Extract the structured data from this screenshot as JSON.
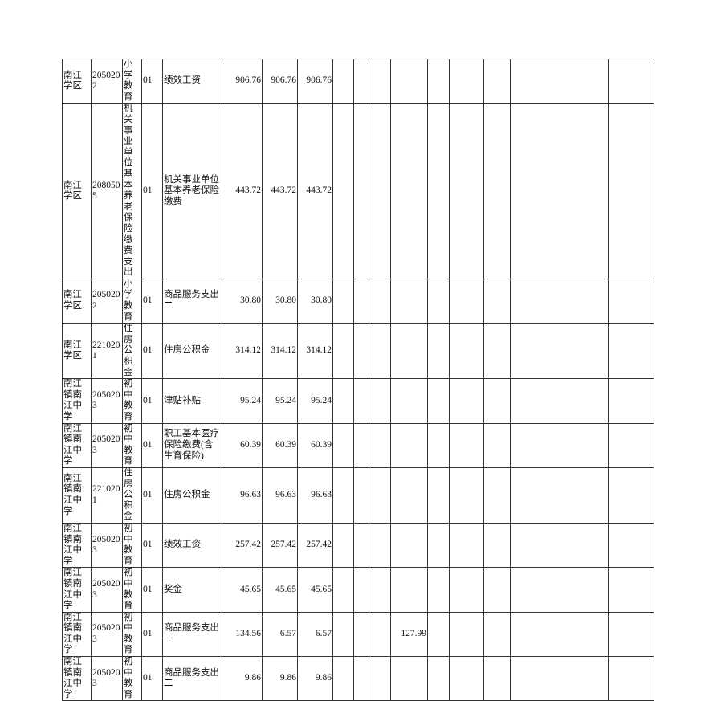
{
  "rows": [
    {
      "unit": "南江学区",
      "code": "2050202",
      "category": "小学教育",
      "num": "01",
      "item": "绩效工资",
      "v1": "906.76",
      "v2": "906.76",
      "v3": "906.76",
      "extra": ""
    },
    {
      "unit": "南江学区",
      "code": "2080505",
      "category": "机关事业单位基本养老保险缴费支出",
      "num": "01",
      "item": "机关事业单位基本养老保险缴费",
      "v1": "443.72",
      "v2": "443.72",
      "v3": "443.72",
      "extra": ""
    },
    {
      "unit": "南江学区",
      "code": "2050202",
      "category": "小学教育",
      "num": "01",
      "item": "商品服务支出二",
      "v1": "30.80",
      "v2": "30.80",
      "v3": "30.80",
      "extra": ""
    },
    {
      "unit": "南江学区",
      "code": "2210201",
      "category": "住房公积金",
      "num": "01",
      "item": "住房公积金",
      "v1": "314.12",
      "v2": "314.12",
      "v3": "314.12",
      "extra": ""
    },
    {
      "unit": "南江镇南江中学",
      "code": "2050203",
      "category": "初中教育",
      "num": "01",
      "item": "津贴补贴",
      "v1": "95.24",
      "v2": "95.24",
      "v3": "95.24",
      "extra": ""
    },
    {
      "unit": "南江镇南江中学",
      "code": "2050203",
      "category": "初中教育",
      "num": "01",
      "item": "职工基本医疗保险缴费(含生育保险)",
      "v1": "60.39",
      "v2": "60.39",
      "v3": "60.39",
      "extra": ""
    },
    {
      "unit": "南江镇南江中学",
      "code": "2210201",
      "category": "住房公积金",
      "num": "01",
      "item": "住房公积金",
      "v1": "96.63",
      "v2": "96.63",
      "v3": "96.63",
      "extra": ""
    },
    {
      "unit": "南江镇南江中学",
      "code": "2050203",
      "category": "初中教育",
      "num": "01",
      "item": "绩效工资",
      "v1": "257.42",
      "v2": "257.42",
      "v3": "257.42",
      "extra": ""
    },
    {
      "unit": "南江镇南江中学",
      "code": "2050203",
      "category": "初中教育",
      "num": "01",
      "item": "奖金",
      "v1": "45.65",
      "v2": "45.65",
      "v3": "45.65",
      "extra": ""
    },
    {
      "unit": "南江镇南江中学",
      "code": "2050203",
      "category": "初中教育",
      "num": "01",
      "item": "商品服务支出一",
      "v1": "134.56",
      "v2": "6.57",
      "v3": "6.57",
      "extra": "127.99"
    },
    {
      "unit": "南江镇南江中学",
      "code": "2050203",
      "category": "初中教育",
      "num": "01",
      "item": "商品服务支出二",
      "v1": "9.86",
      "v2": "9.86",
      "v3": "9.86",
      "extra": ""
    }
  ]
}
